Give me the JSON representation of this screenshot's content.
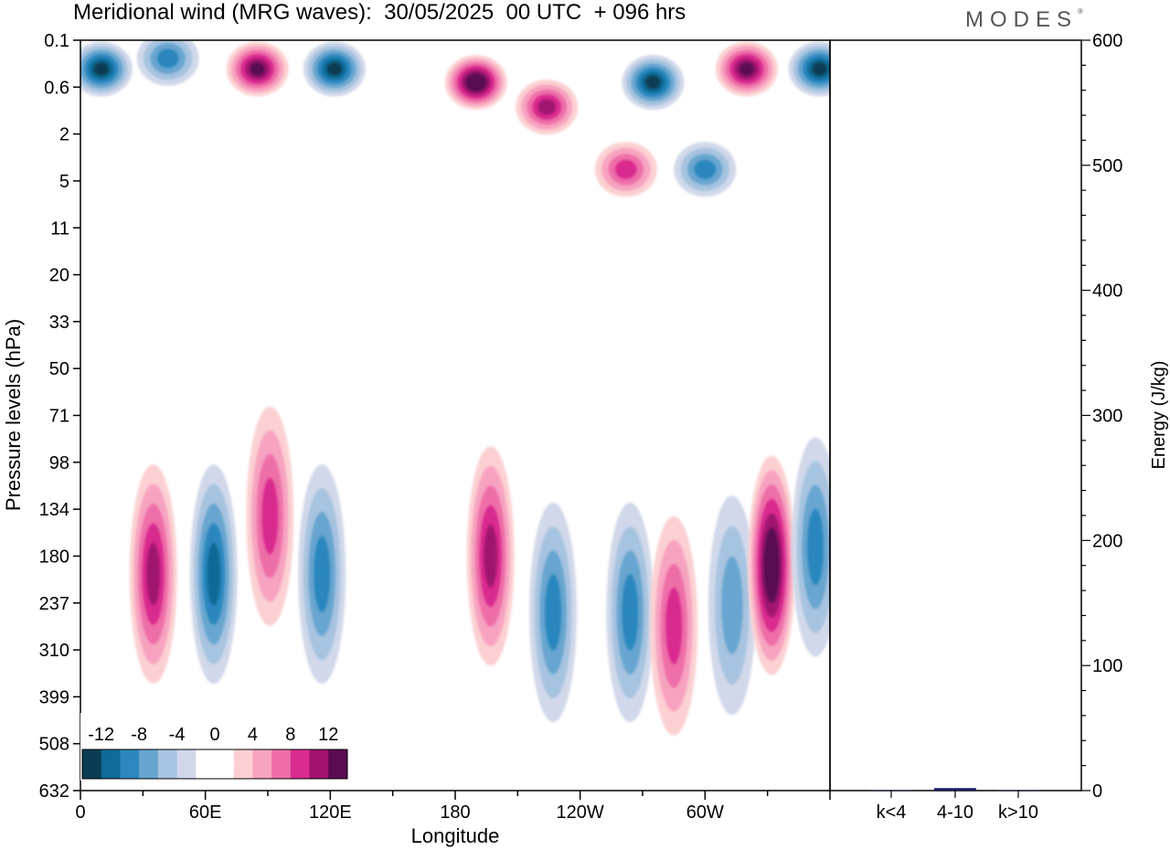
{
  "header": {
    "title": "Meridional wind (MRG waves):  30/05/2025  00 UTC  + 096 hrs",
    "logo": "MODES",
    "logo_mark": "®"
  },
  "chart_data": [
    {
      "type": "heatmap",
      "title": "Meridional wind (MRG waves):  30/05/2025  00 UTC  + 096 hrs",
      "xlabel": "Longitude",
      "ylabel": "Pressure levels (hPa)",
      "x_ticks": [
        "0",
        "60E",
        "120E",
        "180",
        "120W",
        "60W"
      ],
      "x_range_deg": [
        0,
        360
      ],
      "y_ticks": [
        "0.1",
        "0.6",
        "2",
        "5",
        "11",
        "20",
        "33",
        "50",
        "71",
        "98",
        "134",
        "180",
        "237",
        "310",
        "399",
        "508",
        "632"
      ],
      "y_order": "top-to-bottom",
      "colorbar": {
        "tick_labels": [
          "-12",
          "-8",
          "-4",
          "0",
          "4",
          "8",
          "12"
        ],
        "levels": [
          -14,
          -12,
          -10,
          -8,
          -6,
          -4,
          -2,
          0,
          2,
          4,
          6,
          8,
          10,
          12,
          14
        ],
        "colors": [
          "#0b3d52",
          "#0f6a96",
          "#2b87bd",
          "#67a5d0",
          "#a6c3df",
          "#d0d8ea",
          "#ffffff",
          "#ffffff",
          "#fcd0d2",
          "#f7a3c0",
          "#ee6ea8",
          "#d92c8e",
          "#a0126e",
          "#5a0b52"
        ],
        "placement": "bottom-left"
      },
      "features": [
        {
          "lon": 10,
          "level": "0.3",
          "value": -13
        },
        {
          "lon": 42,
          "level": "0.2",
          "value": -8
        },
        {
          "lon": 85,
          "level": "0.3",
          "value": 13
        },
        {
          "lon": 122,
          "level": "0.3",
          "value": -13
        },
        {
          "lon": 190,
          "level": "0.5",
          "value": 14
        },
        {
          "lon": 224,
          "level": "1",
          "value": 10
        },
        {
          "lon": 275,
          "level": "0.5",
          "value": -12
        },
        {
          "lon": 320,
          "level": "0.3",
          "value": 13
        },
        {
          "lon": 355,
          "level": "0.3",
          "value": -12
        },
        {
          "lon": 262,
          "level": "4",
          "value": 9
        },
        {
          "lon": 300,
          "level": "4",
          "value": -9
        },
        {
          "lon": 35,
          "level": "200",
          "value": 10
        },
        {
          "lon": 64,
          "level": "200",
          "value": -10
        },
        {
          "lon": 91,
          "level": "140",
          "value": 8
        },
        {
          "lon": 116,
          "level": "200",
          "value": -8
        },
        {
          "lon": 197,
          "level": "180",
          "value": 10
        },
        {
          "lon": 227,
          "level": "250",
          "value": -8
        },
        {
          "lon": 264,
          "level": "250",
          "value": -8
        },
        {
          "lon": 285,
          "level": "270",
          "value": 8
        },
        {
          "lon": 313,
          "level": "240",
          "value": -7
        },
        {
          "lon": 332,
          "level": "190",
          "value": 14
        },
        {
          "lon": 353,
          "level": "170",
          "value": -9
        }
      ]
    },
    {
      "type": "bar",
      "ylabel": "Energy (J/kg)",
      "categories": [
        "k<4",
        "4-10",
        "k>10"
      ],
      "values": [
        0,
        2,
        0
      ],
      "ylim": [
        0,
        600
      ],
      "y_ticks": [
        "0",
        "100",
        "200",
        "300",
        "400",
        "500",
        "600"
      ],
      "bar_color": "#1a1a6e"
    }
  ]
}
